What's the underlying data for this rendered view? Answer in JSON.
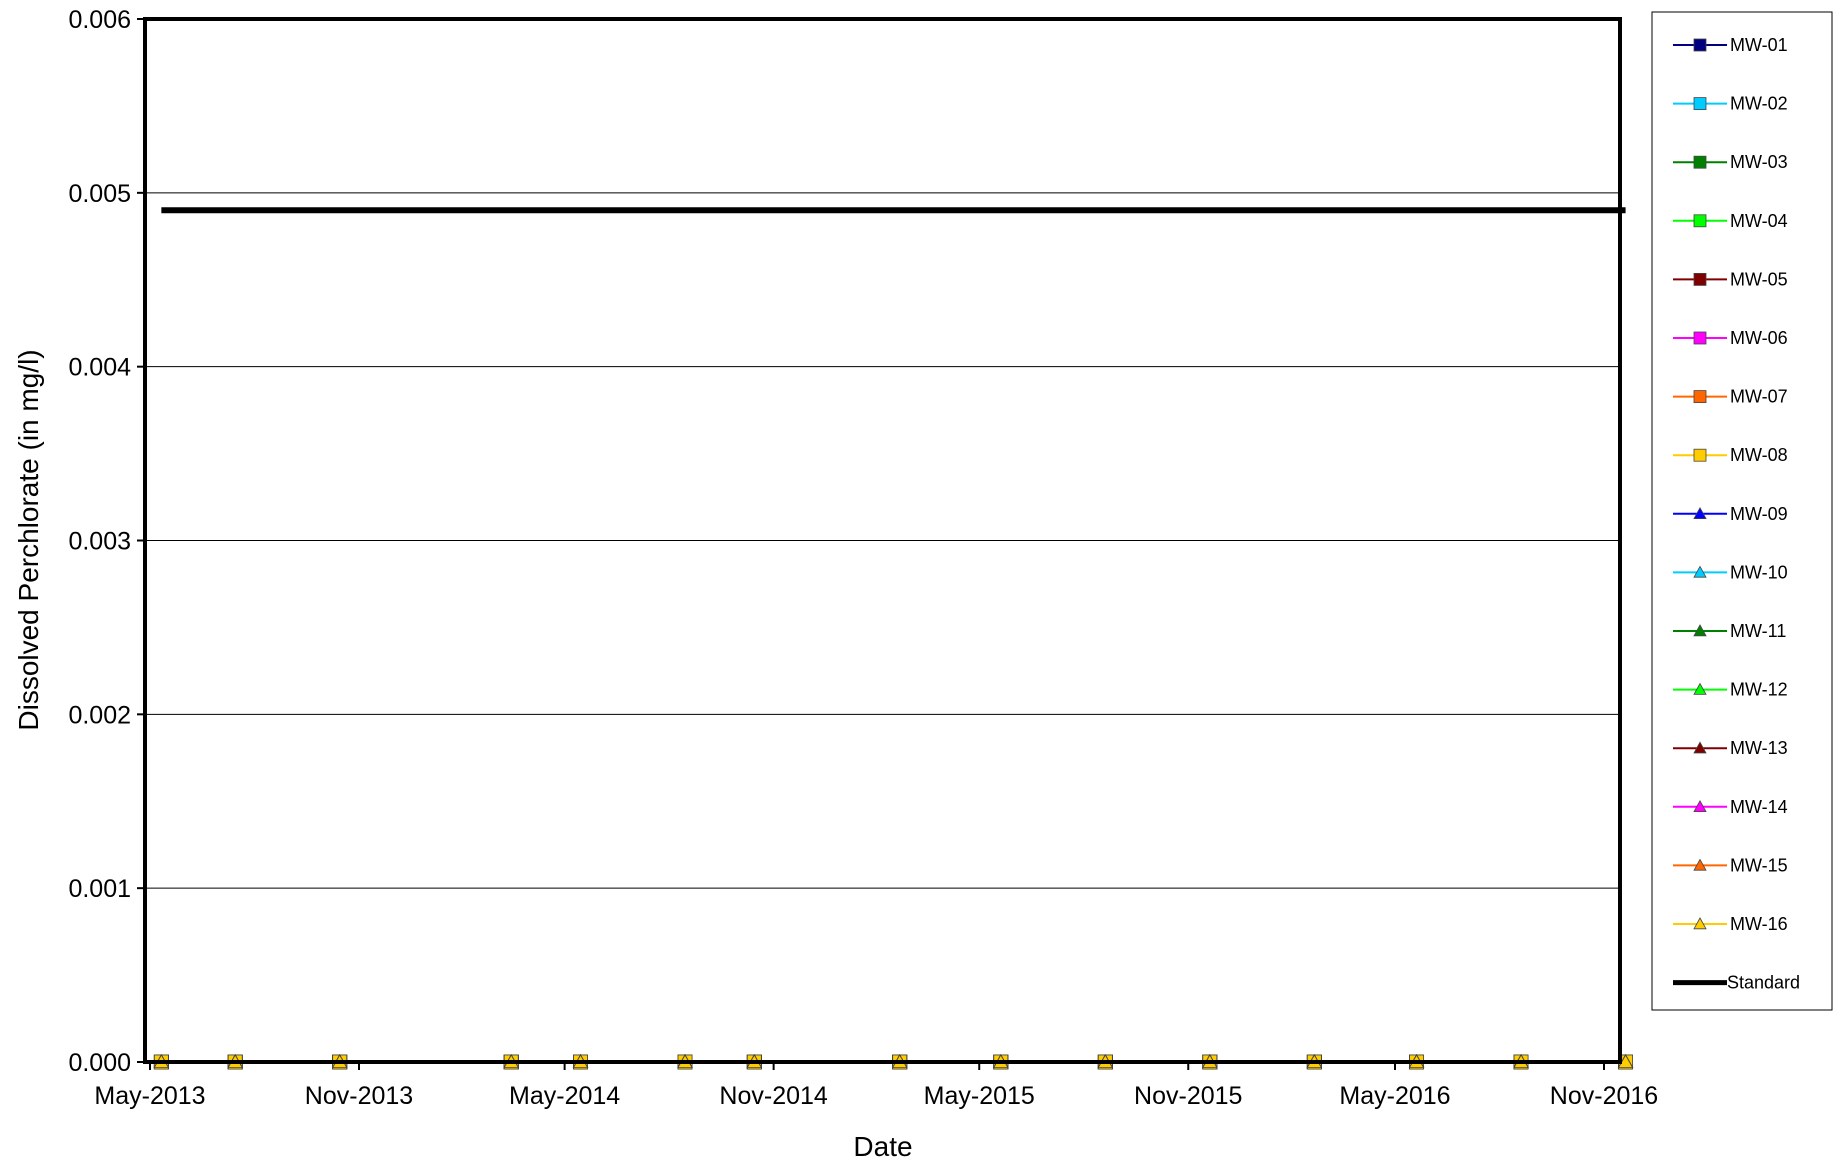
{
  "chart_data": {
    "type": "line",
    "title": "",
    "xlabel": "Date",
    "ylabel": "Dissolved Perchlorate (in mg/l)",
    "ylim": [
      0,
      0.006
    ],
    "yticks": [
      "0.000",
      "0.001",
      "0.002",
      "0.003",
      "0.004",
      "0.005",
      "0.006"
    ],
    "xlim": [
      "2013-05-01",
      "2016-11-01"
    ],
    "xticks": [
      {
        "date": "2013-05-01",
        "label": "May-2013"
      },
      {
        "date": "2013-11-01",
        "label": "Nov-2013"
      },
      {
        "date": "2014-05-01",
        "label": "May-2014"
      },
      {
        "date": "2014-11-01",
        "label": "Nov-2014"
      },
      {
        "date": "2015-05-01",
        "label": "May-2015"
      },
      {
        "date": "2015-11-01",
        "label": "Nov-2015"
      },
      {
        "date": "2016-05-01",
        "label": "May-2016"
      },
      {
        "date": "2016-11-01",
        "label": "Nov-2016"
      }
    ],
    "grid": "horizontal",
    "legend_position": "right",
    "sample_dates": [
      "2013-05-11",
      "2013-07-15",
      "2013-10-15",
      "2014-03-15",
      "2014-05-15",
      "2014-08-15",
      "2014-10-15",
      "2015-02-20",
      "2015-05-20",
      "2015-08-20",
      "2015-11-20",
      "2016-02-20",
      "2016-05-20",
      "2016-08-20",
      "2016-11-20"
    ],
    "series": [
      {
        "name": "MW-01",
        "color": "#000080",
        "marker": "square",
        "values": [
          0,
          0,
          0,
          0,
          0,
          0,
          0,
          0,
          0,
          0,
          0,
          0,
          0,
          0,
          0
        ]
      },
      {
        "name": "MW-02",
        "color": "#00CCFF",
        "marker": "square",
        "values": [
          0,
          0,
          0,
          0,
          0,
          0,
          0,
          0,
          0,
          0,
          0,
          0,
          0,
          0,
          0
        ]
      },
      {
        "name": "MW-03",
        "color": "#008000",
        "marker": "square",
        "values": [
          0,
          0,
          0,
          0,
          0,
          0,
          0,
          0,
          0,
          0,
          0,
          0,
          0,
          0,
          0
        ]
      },
      {
        "name": "MW-04",
        "color": "#00FF00",
        "marker": "square",
        "values": [
          0,
          0,
          0,
          0,
          0,
          0,
          0,
          0,
          0,
          0,
          0,
          0,
          0,
          0,
          0
        ]
      },
      {
        "name": "MW-05",
        "color": "#800000",
        "marker": "square",
        "values": [
          0,
          0,
          0,
          0,
          0,
          0,
          0,
          0,
          0,
          0,
          0,
          0,
          0,
          0,
          0
        ]
      },
      {
        "name": "MW-06",
        "color": "#FF00FF",
        "marker": "square",
        "values": [
          0,
          0,
          0,
          0,
          0,
          0,
          0,
          0,
          0,
          0,
          0,
          0,
          0,
          0,
          0
        ]
      },
      {
        "name": "MW-07",
        "color": "#FF6600",
        "marker": "square",
        "values": [
          0,
          0,
          0,
          0,
          0,
          0,
          0,
          0,
          0,
          0,
          0,
          0,
          0,
          0,
          0
        ]
      },
      {
        "name": "MW-08",
        "color": "#FFCC00",
        "marker": "square",
        "values": [
          0,
          0,
          0,
          0,
          0,
          0,
          0,
          0,
          0,
          0,
          0,
          0,
          0,
          0,
          0
        ]
      },
      {
        "name": "MW-09",
        "color": "#0000FF",
        "marker": "triangle",
        "values": [
          0,
          0,
          0,
          0,
          0,
          0,
          0,
          0,
          0,
          0,
          0,
          0,
          0,
          0,
          0
        ]
      },
      {
        "name": "MW-10",
        "color": "#00CCFF",
        "marker": "triangle",
        "values": [
          0,
          0,
          0,
          0,
          0,
          0,
          0,
          0,
          0,
          0,
          0,
          0,
          0,
          0,
          0
        ]
      },
      {
        "name": "MW-11",
        "color": "#008000",
        "marker": "triangle",
        "values": [
          0,
          0,
          0,
          0,
          0,
          0,
          0,
          0,
          0,
          0,
          0,
          0,
          0,
          0,
          0
        ]
      },
      {
        "name": "MW-12",
        "color": "#00FF00",
        "marker": "triangle",
        "values": [
          0,
          0,
          0,
          0,
          0,
          0,
          0,
          0,
          0,
          0,
          0,
          0,
          0,
          0,
          0
        ]
      },
      {
        "name": "MW-13",
        "color": "#800000",
        "marker": "triangle",
        "values": [
          0,
          0,
          0,
          0,
          0,
          0,
          0,
          0,
          0,
          0,
          0,
          0,
          0,
          0,
          0
        ]
      },
      {
        "name": "MW-14",
        "color": "#FF00FF",
        "marker": "triangle",
        "values": [
          0,
          0,
          0,
          0,
          0,
          0,
          0,
          0,
          0,
          0,
          0,
          0,
          0,
          0,
          0
        ]
      },
      {
        "name": "MW-15",
        "color": "#FF6600",
        "marker": "triangle",
        "values": [
          0,
          0,
          0,
          0,
          0,
          0,
          0,
          0,
          0,
          0,
          0,
          0,
          0,
          0,
          0
        ]
      },
      {
        "name": "MW-16",
        "color": "#FFCC00",
        "marker": "triangle",
        "values": [
          0,
          0,
          0,
          0,
          0,
          0,
          0,
          0,
          0,
          0,
          0,
          0,
          0,
          0,
          0
        ]
      }
    ],
    "standard": {
      "name": "Standard",
      "color": "#000000",
      "value": 0.0049,
      "x_start": "2013-05-11",
      "x_end": "2016-11-20"
    }
  }
}
